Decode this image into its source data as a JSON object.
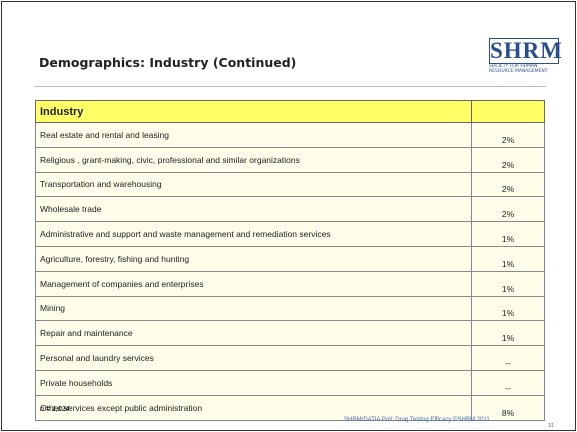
{
  "header": {
    "title": "Demographics: Industry (Continued)",
    "logo": {
      "mark": "SHRM",
      "line1": "SOCIETY FOR HUMAN",
      "line2": "RESOURCE MANAGEMENT"
    }
  },
  "table": {
    "header": "Industry",
    "rows": [
      [
        "Real estate and rental and leasing",
        "2%"
      ],
      [
        "Religious , grant-making, civic, professional and similar organizations",
        "2%"
      ],
      [
        "Transportation and warehousing",
        "2%"
      ],
      [
        "Wholesale trade",
        "2%"
      ],
      [
        "Administrative and support and waste management and remediation services",
        "1%"
      ],
      [
        "Agriculture, forestry, fishing and hunting",
        "1%"
      ],
      [
        "Management of companies and enterprises",
        "1%"
      ],
      [
        "Mining",
        "1%"
      ],
      [
        "Repair and maintenance",
        "1%"
      ],
      [
        "Personal and laundry services",
        "--"
      ],
      [
        "Private households",
        "--"
      ],
      [
        "Other services except public administration",
        "8%"
      ]
    ]
  },
  "footnote": "n = 1,024",
  "footer": {
    "source": "SHRM/DATIA Poll: Drug Testing Efficacy ©SHRM 2011",
    "page": "31"
  }
}
